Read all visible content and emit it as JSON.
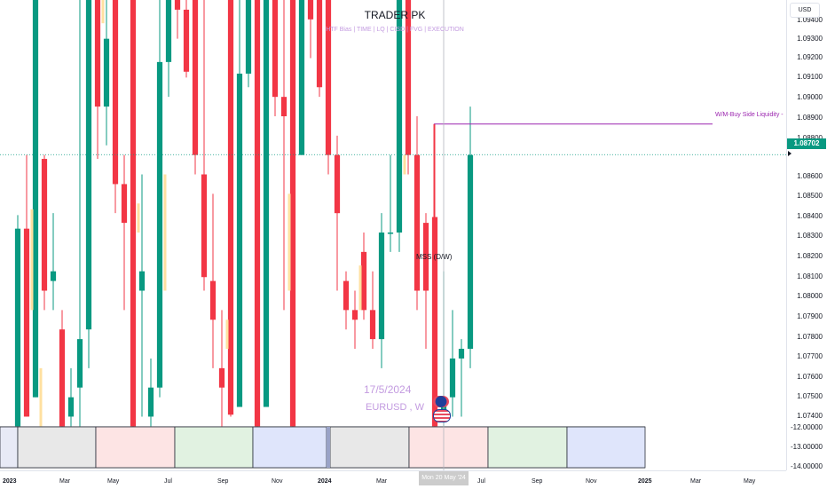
{
  "header": {
    "title": "TRADER PK",
    "subtitle": "HTF Bias | TIME | LQ | CISD | FVG | EXECUTION"
  },
  "watermark": {
    "date": "17/5/2024",
    "symbol": "EURUSD , W"
  },
  "price_axis": {
    "currency": "USD",
    "labels": [
      "1.09400",
      "1.09300",
      "1.09200",
      "1.09100",
      "1.09000",
      "1.08900",
      "1.08800",
      "1.08600",
      "1.08500",
      "1.08400",
      "1.08300",
      "1.08200",
      "1.08100",
      "1.08000",
      "1.07900",
      "1.07800",
      "1.07700",
      "1.07600",
      "1.07500",
      "1.07400"
    ],
    "current_price": "1.08702"
  },
  "sub_axis": {
    "labels": [
      "-12.00000",
      "-13.00000",
      "-14.00000"
    ]
  },
  "annotations": {
    "mss": "MSS (D/W)",
    "liquidity": "W/M-Buy Side Liquidity -"
  },
  "time_axis": {
    "labels": [
      {
        "text": "2023",
        "bold": true
      },
      {
        "text": "Mar",
        "bold": false
      },
      {
        "text": "May",
        "bold": false
      },
      {
        "text": "Jul",
        "bold": false
      },
      {
        "text": "Sep",
        "bold": false
      },
      {
        "text": "Nov",
        "bold": false
      },
      {
        "text": "2024",
        "bold": true
      },
      {
        "text": "Mar",
        "bold": false
      },
      {
        "text": "May",
        "bold": false
      },
      {
        "text": "Jul",
        "bold": false
      },
      {
        "text": "Sep",
        "bold": false
      },
      {
        "text": "Nov",
        "bold": false
      },
      {
        "text": "2025",
        "bold": true
      },
      {
        "text": "Mar",
        "bold": false
      },
      {
        "text": "May",
        "bold": false
      }
    ],
    "cursor_label": "Mon 20 May '24"
  },
  "colors": {
    "up": "#089981",
    "down": "#f23645",
    "highlight": "#ffe0a0",
    "liquidity_line": "#9c27b0",
    "current_price_line": "#089981"
  },
  "chart_data": {
    "type": "candlestick",
    "title": "TRADER PK",
    "subtitle": "HTF Bias | TIME | LQ | CISD | FVG | EXECUTION",
    "symbol": "EURUSD",
    "timeframe": "W",
    "y_range": [
      1.0732,
      1.095
    ],
    "current_price": 1.08702,
    "liquidity_level": 1.0886,
    "candles": [
      {
        "o": 1.073,
        "h": 1.0839,
        "l": 1.073,
        "c": 1.0832
      },
      {
        "o": 1.0832,
        "h": 1.087,
        "l": 1.0735,
        "c": 1.0735
      },
      {
        "o": 1.0745,
        "h": 1.095,
        "l": 1.0745,
        "c": 1.095
      },
      {
        "o": 1.0868,
        "h": 1.087,
        "l": 1.079,
        "c": 1.08
      },
      {
        "o": 1.0805,
        "h": 1.084,
        "l": 1.079,
        "c": 1.081
      },
      {
        "o": 1.078,
        "h": 1.079,
        "l": 1.073,
        "c": 1.073
      },
      {
        "o": 1.0735,
        "h": 1.076,
        "l": 1.073,
        "c": 1.0745
      },
      {
        "o": 1.075,
        "h": 1.095,
        "l": 1.073,
        "c": 1.0775
      },
      {
        "o": 1.078,
        "h": 1.095,
        "l": 1.076,
        "c": 1.095
      },
      {
        "o": 1.095,
        "h": 1.095,
        "l": 1.0868,
        "c": 1.0895
      },
      {
        "o": 1.0895,
        "h": 1.095,
        "l": 1.0875,
        "c": 1.093
      },
      {
        "o": 1.095,
        "h": 1.095,
        "l": 1.084,
        "c": 1.0855
      },
      {
        "o": 1.0855,
        "h": 1.087,
        "l": 1.079,
        "c": 1.0835
      },
      {
        "o": 1.095,
        "h": 1.095,
        "l": 1.073,
        "c": 1.073
      },
      {
        "o": 1.08,
        "h": 1.086,
        "l": 1.0735,
        "c": 1.081
      },
      {
        "o": 1.0735,
        "h": 1.0765,
        "l": 1.073,
        "c": 1.075
      },
      {
        "o": 1.075,
        "h": 1.095,
        "l": 1.0745,
        "c": 1.0918
      },
      {
        "o": 1.0918,
        "h": 1.095,
        "l": 1.09,
        "c": 1.095
      },
      {
        "o": 1.095,
        "h": 1.095,
        "l": 1.093,
        "c": 1.0945
      },
      {
        "o": 1.0945,
        "h": 1.095,
        "l": 1.091,
        "c": 1.0913
      },
      {
        "o": 1.095,
        "h": 1.095,
        "l": 1.086,
        "c": 1.087
      },
      {
        "o": 1.086,
        "h": 1.095,
        "l": 1.08,
        "c": 1.0807
      },
      {
        "o": 1.0805,
        "h": 1.085,
        "l": 1.076,
        "c": 1.0785
      },
      {
        "o": 1.076,
        "h": 1.079,
        "l": 1.073,
        "c": 1.075
      },
      {
        "o": 1.095,
        "h": 1.095,
        "l": 1.0735,
        "c": 1.0736
      },
      {
        "o": 1.074,
        "h": 1.095,
        "l": 1.074,
        "c": 1.0912
      },
      {
        "o": 1.0912,
        "h": 1.095,
        "l": 1.0905,
        "c": 1.095
      },
      {
        "o": 1.095,
        "h": 1.095,
        "l": 1.073,
        "c": 1.073
      },
      {
        "o": 1.074,
        "h": 1.095,
        "l": 1.074,
        "c": 1.095
      },
      {
        "o": 1.095,
        "h": 1.095,
        "l": 1.089,
        "c": 1.09
      },
      {
        "o": 1.09,
        "h": 1.095,
        "l": 1.079,
        "c": 1.089
      },
      {
        "o": 1.095,
        "h": 1.095,
        "l": 1.073,
        "c": 1.073
      },
      {
        "o": 1.087,
        "h": 1.095,
        "l": 1.087,
        "c": 1.095
      },
      {
        "o": 1.095,
        "h": 1.095,
        "l": 1.092,
        "c": 1.094
      },
      {
        "o": 1.095,
        "h": 1.095,
        "l": 1.09,
        "c": 1.0905
      },
      {
        "o": 1.095,
        "h": 1.095,
        "l": 1.086,
        "c": 1.087
      },
      {
        "o": 1.087,
        "h": 1.088,
        "l": 1.08,
        "c": 1.084
      },
      {
        "o": 1.0805,
        "h": 1.081,
        "l": 1.078,
        "c": 1.079
      },
      {
        "o": 1.079,
        "h": 1.08,
        "l": 1.077,
        "c": 1.0785
      },
      {
        "o": 1.082,
        "h": 1.083,
        "l": 1.0785,
        "c": 1.079
      },
      {
        "o": 1.079,
        "h": 1.081,
        "l": 1.077,
        "c": 1.0775
      },
      {
        "o": 1.0775,
        "h": 1.084,
        "l": 1.076,
        "c": 1.083
      },
      {
        "o": 1.083,
        "h": 1.087,
        "l": 1.082,
        "c": 1.083
      },
      {
        "o": 1.083,
        "h": 1.095,
        "l": 1.082,
        "c": 1.095
      },
      {
        "o": 1.095,
        "h": 1.095,
        "l": 1.086,
        "c": 1.087
      },
      {
        "o": 1.087,
        "h": 1.089,
        "l": 1.079,
        "c": 1.08
      },
      {
        "o": 1.0835,
        "h": 1.084,
        "l": 1.077,
        "c": 1.08
      },
      {
        "o": 1.0838,
        "h": 1.0886,
        "l": 1.073,
        "c": 1.073
      },
      {
        "o": 1.0735,
        "h": 1.081,
        "l": 1.073,
        "c": 1.0745
      },
      {
        "o": 1.0745,
        "h": 1.079,
        "l": 1.0735,
        "c": 1.0765
      },
      {
        "o": 1.0765,
        "h": 1.0775,
        "l": 1.0735,
        "c": 1.077
      },
      {
        "o": 1.077,
        "h": 1.0895,
        "l": 1.076,
        "c": 1.087
      }
    ]
  }
}
